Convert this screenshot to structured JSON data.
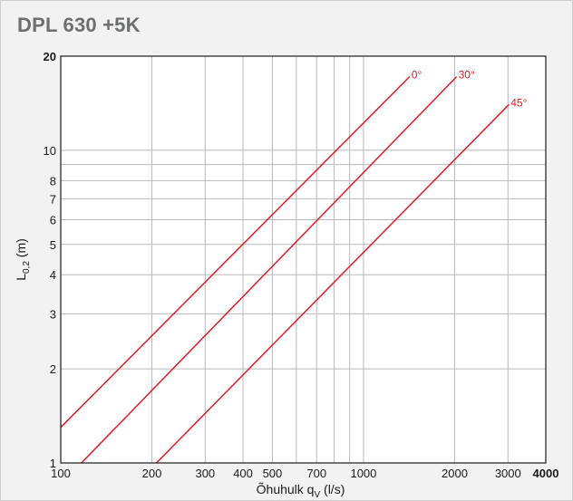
{
  "header": {
    "title": "DPL 630 +5K"
  },
  "chart_data": {
    "type": "line",
    "title": "DPL 630 +5K",
    "xlabel_main": "Õhuhulk q",
    "xlabel_sub": "V",
    "xlabel_unit": " (l/s)",
    "ylabel_main": "L",
    "ylabel_sub": "0,2",
    "ylabel_unit": " (m)",
    "x_scale": "log",
    "y_scale": "log",
    "xlim": [
      100,
      4000
    ],
    "ylim": [
      1,
      20
    ],
    "grid": true,
    "x_gridlines": [
      200,
      300,
      400,
      500,
      600,
      700,
      800,
      900,
      1000,
      2000,
      3000
    ],
    "y_gridlines": [
      2,
      3,
      4,
      5,
      6,
      7,
      8,
      9,
      10
    ],
    "x_ticks": [
      {
        "value": 100,
        "label": "100",
        "bold": false
      },
      {
        "value": 200,
        "label": "200",
        "bold": false
      },
      {
        "value": 300,
        "label": "300",
        "bold": false
      },
      {
        "value": 400,
        "label": "400",
        "bold": false
      },
      {
        "value": 500,
        "label": "500",
        "bold": false
      },
      {
        "value": 700,
        "label": "700",
        "bold": false
      },
      {
        "value": 1000,
        "label": "1000",
        "bold": false
      },
      {
        "value": 2000,
        "label": "2000",
        "bold": false
      },
      {
        "value": 3000,
        "label": "3000",
        "bold": false
      },
      {
        "value": 4000,
        "label": "4000",
        "bold": true
      }
    ],
    "y_ticks": [
      {
        "value": 1,
        "label": "1",
        "bold": false
      },
      {
        "value": 2,
        "label": "2",
        "bold": false
      },
      {
        "value": 3,
        "label": "3",
        "bold": false
      },
      {
        "value": 4,
        "label": "4",
        "bold": false
      },
      {
        "value": 5,
        "label": "5",
        "bold": false
      },
      {
        "value": 6,
        "label": "6",
        "bold": false
      },
      {
        "value": 7,
        "label": "7",
        "bold": false
      },
      {
        "value": 8,
        "label": "8",
        "bold": false
      },
      {
        "value": 10,
        "label": "10",
        "bold": false
      },
      {
        "value": 20,
        "label": "20",
        "bold": true
      }
    ],
    "series": [
      {
        "name": "0°",
        "x": [
          100,
          1420
        ],
        "y": [
          1.3,
          17.2
        ]
      },
      {
        "name": "30°",
        "x": [
          117,
          2030
        ],
        "y": [
          1.0,
          17.2
        ]
      },
      {
        "name": "45°",
        "x": [
          207,
          3020
        ],
        "y": [
          1.0,
          14.0
        ]
      }
    ],
    "colors": {
      "series": "#e21b23",
      "grid": "#b9b9b9",
      "axis": "#1a1a1a",
      "plot_bg": "#ffffff",
      "page_bg": "#f2f2f2",
      "title": "#6d6e70"
    }
  }
}
